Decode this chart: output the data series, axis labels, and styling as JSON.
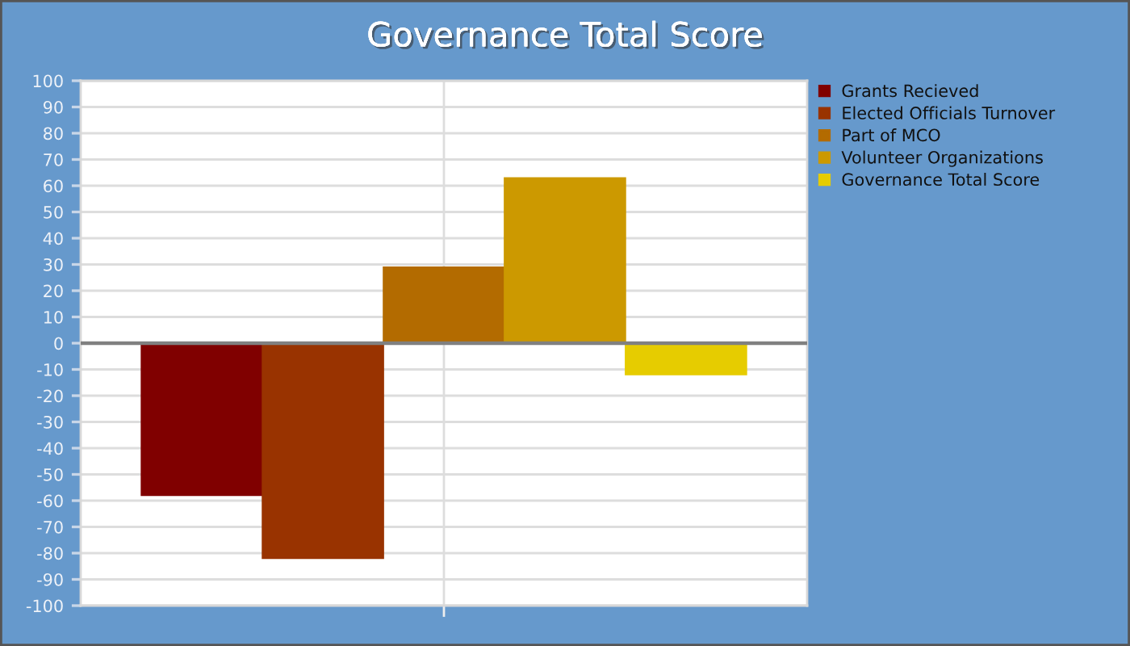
{
  "chart_data": {
    "type": "bar",
    "title": "Governance Total Score",
    "categories": [
      null
    ],
    "series": [
      {
        "name": "Grants Recieved",
        "color": "#800000",
        "values": [
          -58
        ]
      },
      {
        "name": "Elected Officials Turnover",
        "color": "#993300",
        "values": [
          -82
        ]
      },
      {
        "name": "Part of MCO",
        "color": "#b36b00",
        "values": [
          29
        ]
      },
      {
        "name": "Volunteer Organizations",
        "color": "#cc9900",
        "values": [
          63
        ]
      },
      {
        "name": "Governance Total Score",
        "color": "#e6cc00",
        "values": [
          -12
        ]
      }
    ],
    "ylim": [
      -100,
      100
    ],
    "yticks": [
      -100,
      -90,
      -80,
      -70,
      -60,
      -50,
      -40,
      -30,
      -20,
      -10,
      0,
      10,
      20,
      30,
      40,
      50,
      60,
      70,
      80,
      90,
      100
    ],
    "grid": true,
    "legend": "right",
    "ref_lines": [
      {
        "axis": "y",
        "value": 0,
        "color": "#808080"
      }
    ]
  }
}
